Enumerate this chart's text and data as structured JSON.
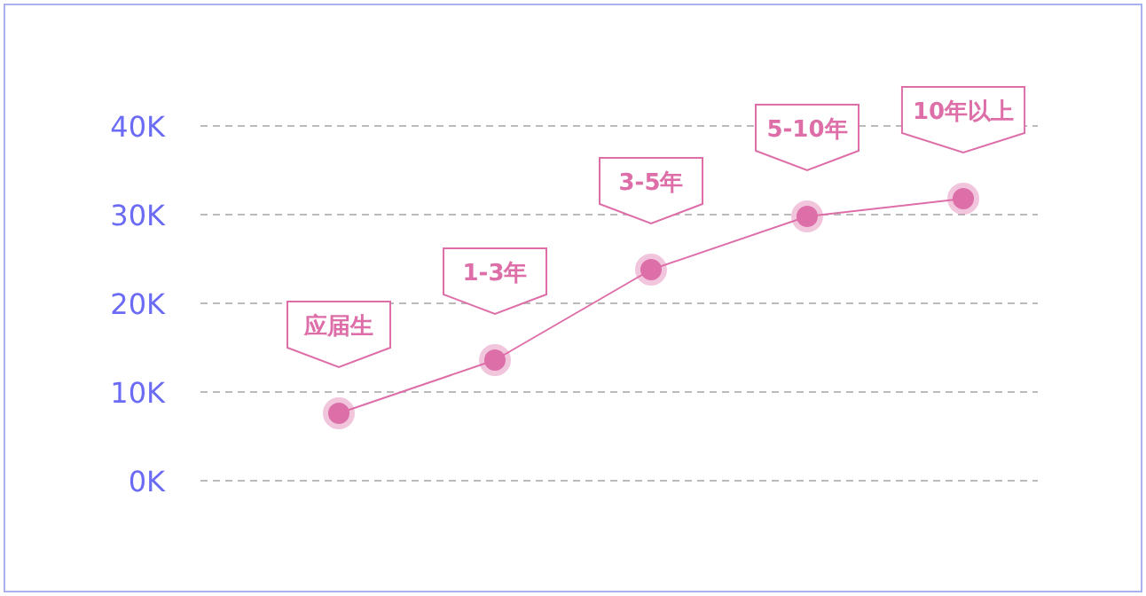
{
  "chart_data": {
    "type": "line",
    "categories": [
      "应届生",
      "1-3年",
      "3-5年",
      "5-10年",
      "10年以上"
    ],
    "series": [
      {
        "color": "#dd6ea8",
        "values": [
          7600,
          13600,
          23800,
          29800,
          31800
        ]
      }
    ],
    "ylim": [
      0,
      40000
    ],
    "yticks": [
      {
        "value": 0,
        "label": "0K"
      },
      {
        "value": 10000,
        "label": "10K"
      },
      {
        "value": 20000,
        "label": "20K"
      },
      {
        "value": 30000,
        "label": "30K"
      },
      {
        "value": 40000,
        "label": "40K"
      }
    ],
    "grid": "y",
    "marker": "circle",
    "line_style": "solid"
  }
}
